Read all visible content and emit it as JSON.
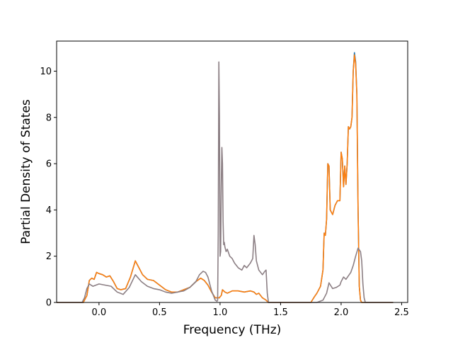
{
  "chart_data": {
    "type": "line",
    "title": "",
    "xlabel": "Frequency (THz)",
    "ylabel": "Partial Density of States",
    "xlim": [
      -0.35,
      2.55
    ],
    "ylim": [
      0,
      11.3
    ],
    "xticks": [
      0.0,
      0.5,
      1.0,
      1.5,
      2.0,
      2.5
    ],
    "xtick_labels": [
      "0.0",
      "0.5",
      "1.0",
      "1.5",
      "2.0",
      "2.5"
    ],
    "yticks": [
      0,
      2,
      4,
      6,
      8,
      10
    ],
    "ytick_labels": [
      "0",
      "2",
      "4",
      "6",
      "8",
      "10"
    ],
    "grid": false,
    "legend": "none",
    "series": [
      {
        "color": "#1f77b4",
        "x": [
          -0.35,
          -0.13,
          -0.1,
          -0.08,
          -0.06,
          -0.04,
          -0.02,
          0.0,
          0.03,
          0.06,
          0.09,
          0.12,
          0.15,
          0.18,
          0.22,
          0.26,
          0.3,
          0.33,
          0.36,
          0.4,
          0.45,
          0.5,
          0.55,
          0.6,
          0.65,
          0.7,
          0.75,
          0.8,
          0.84,
          0.87,
          0.9,
          0.93,
          0.96,
          0.975,
          0.98,
          0.985,
          0.99,
          0.995,
          1.0,
          1.01,
          1.02,
          1.03,
          1.04,
          1.06,
          1.08,
          1.1,
          1.15,
          1.2,
          1.25,
          1.28,
          1.3,
          1.32,
          1.35,
          1.38,
          1.39,
          1.4,
          1.5,
          1.6,
          1.7,
          1.75,
          1.78,
          1.8,
          1.83,
          1.85,
          1.86,
          1.87,
          1.88,
          1.89,
          1.9,
          1.91,
          1.93,
          1.95,
          1.97,
          1.99,
          2.0,
          2.01,
          2.02,
          2.03,
          2.04,
          2.05,
          2.06,
          2.07,
          2.08,
          2.09,
          2.1,
          2.11,
          2.12,
          2.13,
          2.14,
          2.15,
          2.16,
          2.17,
          2.18,
          2.19,
          2.2,
          2.25,
          2.3,
          2.43
        ],
        "values": [
          0,
          0,
          0.3,
          0.95,
          1.05,
          1.0,
          1.3,
          1.25,
          1.2,
          1.1,
          1.15,
          0.9,
          0.6,
          0.55,
          0.6,
          1.1,
          1.8,
          1.5,
          1.2,
          1.0,
          0.95,
          0.75,
          0.55,
          0.45,
          0.45,
          0.55,
          0.65,
          0.9,
          1.05,
          0.95,
          0.75,
          0.45,
          0.2,
          0.2,
          0.2,
          0.2,
          0.2,
          0.2,
          0.25,
          0.3,
          0.55,
          0.5,
          0.45,
          0.4,
          0.45,
          0.5,
          0.5,
          0.45,
          0.5,
          0.45,
          0.35,
          0.4,
          0.2,
          0.1,
          0.05,
          0,
          0,
          0,
          0,
          0,
          0.25,
          0.4,
          0.7,
          1.4,
          3.0,
          2.9,
          3.6,
          6.0,
          5.9,
          4.0,
          3.8,
          4.2,
          4.4,
          4.4,
          6.5,
          6.2,
          5.0,
          5.9,
          5.1,
          6.0,
          7.6,
          7.5,
          7.6,
          8.0,
          10.0,
          10.8,
          10.4,
          9.0,
          4.0,
          0.7,
          0.1,
          0,
          0,
          0,
          0,
          0,
          0,
          0
        ]
      },
      {
        "color": "#ff7f0e",
        "x": [
          -0.35,
          -0.13,
          -0.1,
          -0.08,
          -0.06,
          -0.04,
          -0.02,
          0.0,
          0.03,
          0.06,
          0.09,
          0.12,
          0.15,
          0.18,
          0.22,
          0.26,
          0.3,
          0.33,
          0.36,
          0.4,
          0.45,
          0.5,
          0.55,
          0.6,
          0.65,
          0.7,
          0.75,
          0.8,
          0.84,
          0.87,
          0.9,
          0.93,
          0.96,
          0.975,
          0.98,
          0.985,
          0.99,
          0.995,
          1.0,
          1.01,
          1.02,
          1.03,
          1.04,
          1.06,
          1.08,
          1.1,
          1.15,
          1.2,
          1.25,
          1.28,
          1.3,
          1.32,
          1.35,
          1.38,
          1.39,
          1.4,
          1.5,
          1.6,
          1.7,
          1.75,
          1.78,
          1.8,
          1.83,
          1.85,
          1.86,
          1.87,
          1.88,
          1.89,
          1.9,
          1.91,
          1.93,
          1.95,
          1.97,
          1.99,
          2.0,
          2.01,
          2.02,
          2.03,
          2.04,
          2.05,
          2.06,
          2.07,
          2.08,
          2.09,
          2.1,
          2.11,
          2.12,
          2.13,
          2.14,
          2.15,
          2.16,
          2.17,
          2.18,
          2.19,
          2.2,
          2.25,
          2.3,
          2.43
        ],
        "values": [
          0,
          0,
          0.3,
          0.95,
          1.05,
          1.0,
          1.3,
          1.25,
          1.2,
          1.1,
          1.15,
          0.9,
          0.6,
          0.55,
          0.6,
          1.1,
          1.8,
          1.5,
          1.2,
          1.0,
          0.95,
          0.75,
          0.55,
          0.45,
          0.45,
          0.55,
          0.65,
          0.9,
          1.05,
          0.95,
          0.75,
          0.45,
          0.2,
          0.2,
          0.2,
          0.2,
          0.2,
          0.2,
          0.25,
          0.3,
          0.55,
          0.5,
          0.45,
          0.4,
          0.45,
          0.5,
          0.5,
          0.45,
          0.5,
          0.45,
          0.35,
          0.4,
          0.2,
          0.1,
          0.05,
          0,
          0,
          0,
          0,
          0,
          0.25,
          0.4,
          0.7,
          1.4,
          3.0,
          2.9,
          3.6,
          6.0,
          5.9,
          4.0,
          3.8,
          4.2,
          4.4,
          4.4,
          6.5,
          6.2,
          5.0,
          5.9,
          5.1,
          6.0,
          7.6,
          7.5,
          7.6,
          8.0,
          10.0,
          10.7,
          10.3,
          9.0,
          4.0,
          0.7,
          0.1,
          0,
          0,
          0,
          0,
          0,
          0,
          0
        ]
      },
      {
        "color": "#8c7f84",
        "x": [
          -0.35,
          -0.14,
          -0.12,
          -0.1,
          -0.08,
          -0.05,
          0.0,
          0.05,
          0.1,
          0.15,
          0.2,
          0.25,
          0.3,
          0.35,
          0.4,
          0.45,
          0.5,
          0.55,
          0.6,
          0.65,
          0.7,
          0.75,
          0.8,
          0.83,
          0.86,
          0.88,
          0.9,
          0.93,
          0.96,
          0.975,
          0.98,
          0.985,
          0.99,
          0.995,
          1.0,
          1.005,
          1.01,
          1.015,
          1.02,
          1.025,
          1.03,
          1.035,
          1.04,
          1.05,
          1.06,
          1.08,
          1.1,
          1.12,
          1.15,
          1.18,
          1.2,
          1.22,
          1.25,
          1.27,
          1.28,
          1.29,
          1.3,
          1.32,
          1.35,
          1.37,
          1.38,
          1.385,
          1.39,
          1.4,
          1.5,
          1.6,
          1.7,
          1.8,
          1.85,
          1.88,
          1.9,
          1.93,
          1.96,
          1.99,
          2.0,
          2.02,
          2.04,
          2.06,
          2.08,
          2.1,
          2.12,
          2.14,
          2.16,
          2.17,
          2.18,
          2.19,
          2.2,
          2.3,
          2.43
        ],
        "values": [
          0,
          0,
          0.2,
          0.6,
          0.8,
          0.7,
          0.8,
          0.75,
          0.7,
          0.45,
          0.35,
          0.65,
          1.2,
          0.9,
          0.7,
          0.6,
          0.55,
          0.45,
          0.4,
          0.45,
          0.5,
          0.65,
          0.9,
          1.2,
          1.35,
          1.3,
          1.1,
          0.5,
          0.1,
          0.05,
          0.1,
          3.0,
          10.4,
          8.0,
          2.0,
          2.2,
          5.0,
          6.7,
          6.0,
          3.5,
          2.5,
          2.6,
          2.4,
          2.2,
          2.3,
          2.0,
          1.9,
          1.7,
          1.5,
          1.4,
          1.6,
          1.5,
          1.7,
          1.9,
          2.9,
          2.5,
          1.8,
          1.4,
          1.2,
          1.35,
          1.4,
          0.9,
          0.4,
          0,
          0,
          0,
          0,
          0,
          0.1,
          0.4,
          0.85,
          0.6,
          0.65,
          0.75,
          0.9,
          1.1,
          1.0,
          1.15,
          1.3,
          1.6,
          2.0,
          2.35,
          2.2,
          1.8,
          0.8,
          0.2,
          0,
          0,
          0
        ]
      }
    ]
  }
}
